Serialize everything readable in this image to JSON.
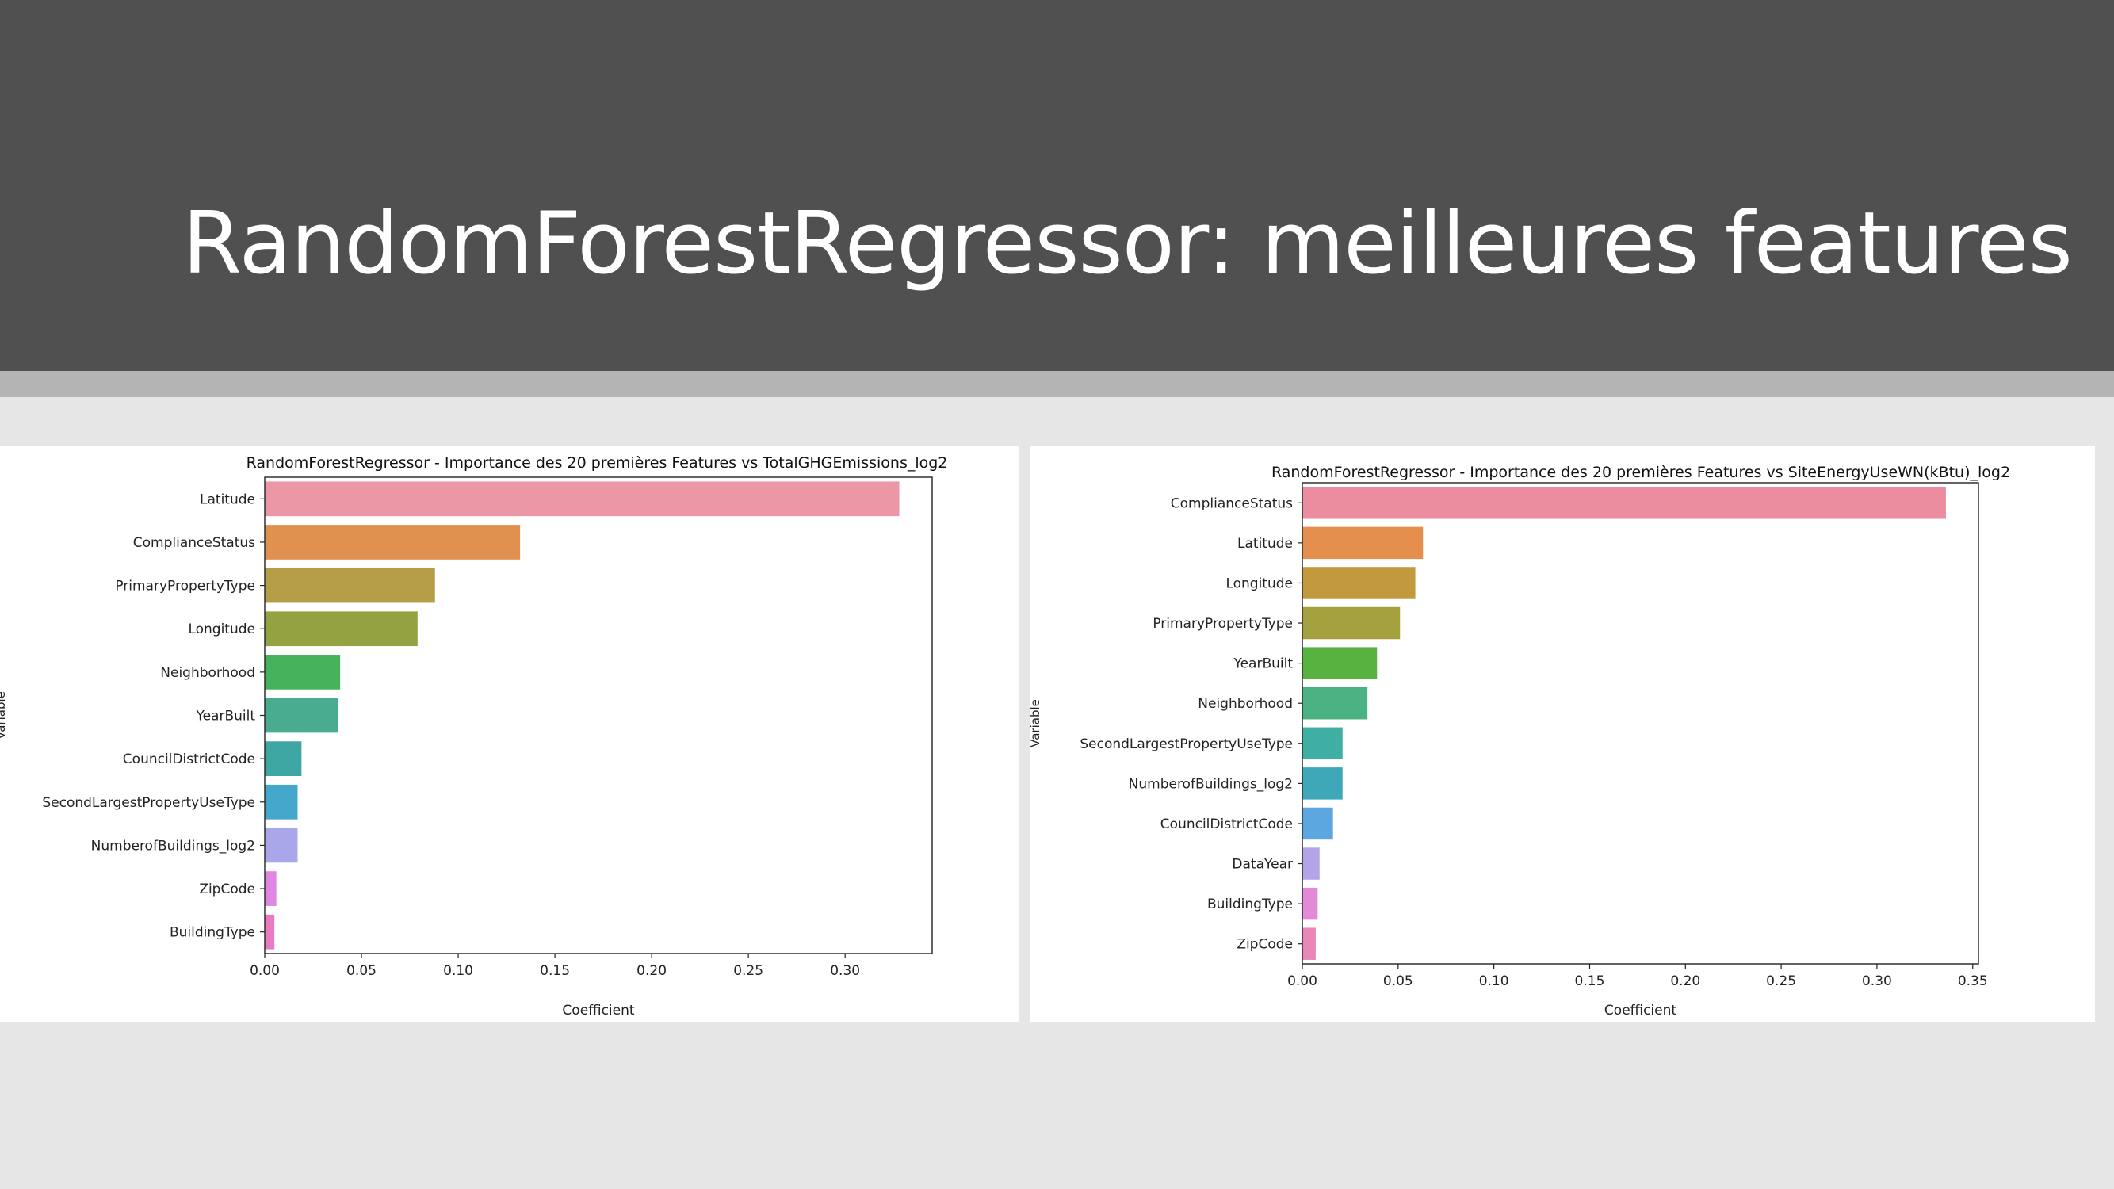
{
  "slide": {
    "title": "RandomForestRegressor: meilleures features"
  },
  "chart_data": [
    {
      "type": "bar",
      "orientation": "horizontal",
      "title": "RandomForestRegressor - Importance des 20 premières Features vs TotalGHGEmissions_log2",
      "xlabel": "Coefficient",
      "ylabel": "Variable",
      "xlim": [
        0,
        0.345
      ],
      "xticks": [
        "0.00",
        "0.05",
        "0.10",
        "0.15",
        "0.20",
        "0.25",
        "0.30"
      ],
      "grid": false,
      "categories": [
        "Latitude",
        "ComplianceStatus",
        "PrimaryPropertyType",
        "Longitude",
        "Neighborhood",
        "YearBuilt",
        "CouncilDistrictCode",
        "SecondLargestPropertyUseType",
        "NumberofBuildings_log2",
        "ZipCode",
        "BuildingType"
      ],
      "values": [
        0.328,
        0.132,
        0.088,
        0.079,
        0.039,
        0.038,
        0.019,
        0.017,
        0.017,
        0.006,
        0.005
      ],
      "colors": [
        "#eb97a5",
        "#e1914f",
        "#b59e47",
        "#94a242",
        "#46b25b",
        "#49ab8f",
        "#3ea7a4",
        "#43a8cc",
        "#a9a7ea",
        "#e087e4",
        "#e87bc2"
      ]
    },
    {
      "type": "bar",
      "orientation": "horizontal",
      "title": "RandomForestRegressor - Importance des 20 premières Features vs SiteEnergyUseWN(kBtu)_log2",
      "xlabel": "Coefficient",
      "ylabel": "Variable",
      "xlim": [
        0,
        0.353
      ],
      "xticks": [
        "0.00",
        "0.05",
        "0.10",
        "0.15",
        "0.20",
        "0.25",
        "0.30",
        "0.35"
      ],
      "grid": false,
      "categories": [
        "ComplianceStatus",
        "Latitude",
        "Longitude",
        "PrimaryPropertyType",
        "YearBuilt",
        "Neighborhood",
        "SecondLargestPropertyUseType",
        "NumberofBuildings_log2",
        "CouncilDistrictCode",
        "DataYear",
        "BuildingType",
        "ZipCode"
      ],
      "values": [
        0.336,
        0.063,
        0.059,
        0.051,
        0.039,
        0.034,
        0.021,
        0.021,
        0.016,
        0.009,
        0.008,
        0.007
      ],
      "colors": [
        "#eb8d9e",
        "#e58f4f",
        "#c2993d",
        "#a5a03e",
        "#58b240",
        "#4bb383",
        "#3eafa2",
        "#3ea7b8",
        "#5da7e1",
        "#b4a4e7",
        "#e28ad8",
        "#e887b8"
      ]
    }
  ]
}
